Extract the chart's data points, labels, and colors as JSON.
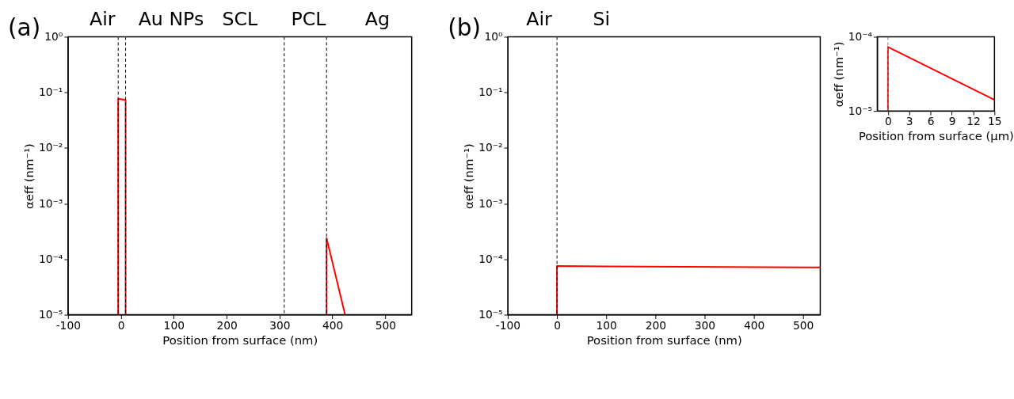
{
  "chart_data": [
    {
      "type": "line",
      "title": "(a)",
      "xlabel": "Position from surface (nm)",
      "ylabel": "αeff (nm⁻¹)",
      "xlim": [
        -100,
        550
      ],
      "xticks": [
        -100,
        0,
        100,
        200,
        300,
        400,
        500
      ],
      "ylim": [
        1e-05,
        1
      ],
      "yticks": [
        {
          "value": 1e-05,
          "label": "10⁻⁵"
        },
        {
          "value": 0.0001,
          "label": "10⁻⁴"
        },
        {
          "value": 0.001,
          "label": "10⁻³"
        },
        {
          "value": 0.01,
          "label": "10⁻²"
        },
        {
          "value": 0.1,
          "label": "10⁻¹"
        },
        {
          "value": 1,
          "label": "10⁰"
        }
      ],
      "log": "y",
      "line_style": "solid",
      "marker": "none",
      "series": [
        {
          "color": "#ff0000",
          "x": [
            -5,
            -5,
            9,
            9
          ],
          "values": [
            1e-05,
            0.077,
            0.073,
            1e-05
          ]
        },
        {
          "color": "#ff0000",
          "x": [
            389,
            389,
            424
          ],
          "values": [
            1e-05,
            0.00024,
            1e-05
          ]
        }
      ],
      "ref_lines": [
        {
          "axis": "x",
          "value": -5,
          "color": "#000000",
          "line_style": "dashed"
        },
        {
          "axis": "x",
          "value": 9,
          "color": "#000000",
          "line_style": "dashed"
        },
        {
          "axis": "x",
          "value": 309,
          "color": "#000000",
          "line_style": "dashed"
        },
        {
          "axis": "x",
          "value": 389,
          "color": "#000000",
          "line_style": "dashed"
        }
      ],
      "annotations": [
        "Air",
        "Au NPs",
        "SCL",
        "PCL",
        "Ag"
      ]
    },
    {
      "type": "line",
      "title": "(b)",
      "xlabel": "Position from surface (nm)",
      "ylabel": "αeff (nm⁻¹)",
      "xlim": [
        -100,
        535
      ],
      "xticks": [
        -100,
        0,
        100,
        200,
        300,
        400,
        500
      ],
      "ylim": [
        1e-05,
        1
      ],
      "yticks": [
        {
          "value": 1e-05,
          "label": "10⁻⁵"
        },
        {
          "value": 0.0001,
          "label": "10⁻⁴"
        },
        {
          "value": 0.001,
          "label": "10⁻³"
        },
        {
          "value": 0.01,
          "label": "10⁻²"
        },
        {
          "value": 0.1,
          "label": "10⁻¹"
        },
        {
          "value": 1,
          "label": "10⁰"
        }
      ],
      "log": "y",
      "line_style": "solid",
      "marker": "none",
      "series": [
        {
          "color": "#ff0000",
          "x": [
            0,
            0,
            535
          ],
          "values": [
            1e-05,
            7.5e-05,
            7.1e-05
          ]
        }
      ],
      "ref_lines": [
        {
          "axis": "x",
          "value": 0,
          "color": "#000000",
          "line_style": "dashed"
        }
      ],
      "annotations": [
        "Air",
        "Si"
      ]
    },
    {
      "type": "line",
      "xlabel": "Position from surface (µm)",
      "ylabel": "αeff (nm⁻¹)",
      "xlim": [
        -1.5,
        15
      ],
      "xticks": [
        0,
        3,
        6,
        9,
        12,
        15
      ],
      "ylim": [
        1e-05,
        0.0001
      ],
      "yticks": [
        {
          "value": 1e-05,
          "label": "10⁻⁵"
        },
        {
          "value": 0.0001,
          "label": "10⁻⁴"
        }
      ],
      "log": "y",
      "line_style": "solid",
      "marker": "none",
      "series": [
        {
          "color": "#ff0000",
          "x": [
            0,
            0,
            15
          ],
          "values": [
            1e-05,
            7.3e-05,
            1.41e-05
          ]
        }
      ],
      "ref_lines": [
        {
          "axis": "x",
          "value": 0,
          "color": "#808080",
          "line_style": "dashed"
        }
      ]
    }
  ]
}
